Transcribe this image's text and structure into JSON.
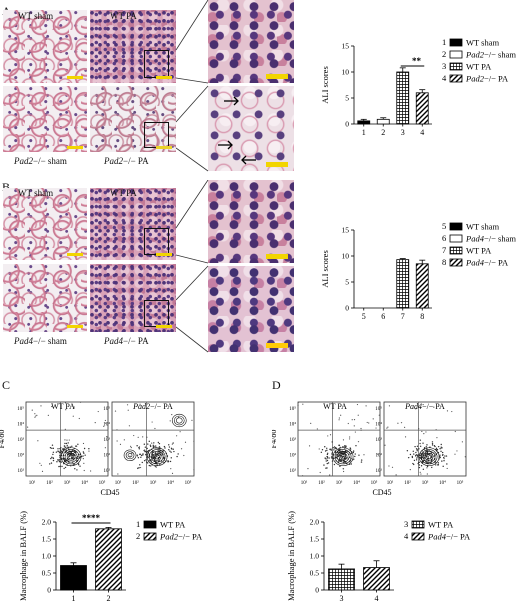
{
  "panels": {
    "A": {
      "letter": "A",
      "labels": {
        "wt_sham": "WT sham",
        "wt_pa": "WT PA",
        "ko_sham_gene": "Pad2",
        "ko_sham_rest": "−/− sham",
        "ko_pa_gene": "Pad2",
        "ko_pa_rest": "−/− PA"
      },
      "chart_data": {
        "type": "bar",
        "ylabel": "ALI scores",
        "categories": [
          "1",
          "2",
          "3",
          "4"
        ],
        "values": [
          0.6,
          0.9,
          10.0,
          6.0
        ],
        "errors": [
          0.3,
          0.3,
          0.8,
          0.6
        ],
        "ylim": [
          0,
          15
        ],
        "yticks": [
          "0",
          "5",
          "10",
          "15"
        ],
        "significance": {
          "between": [
            "3",
            "4"
          ],
          "label": "**"
        },
        "legend": [
          {
            "num": "1",
            "name": "WT sham",
            "pattern": "solid-black"
          },
          {
            "num": "2",
            "gene": "Pad2",
            "rest": "−/− sham",
            "pattern": "white"
          },
          {
            "num": "3",
            "name": "WT PA",
            "pattern": "grid"
          },
          {
            "num": "4",
            "gene": "Pad2",
            "rest": "−/− PA",
            "pattern": "hatch"
          }
        ]
      }
    },
    "B": {
      "letter": "B",
      "labels": {
        "wt_sham": "WT sham",
        "wt_pa": "WT PA",
        "ko_sham_gene": "Pad4",
        "ko_sham_rest": "−/− sham",
        "ko_pa_gene": "Pad4",
        "ko_pa_rest": "−/− PA"
      },
      "chart_data": {
        "type": "bar",
        "ylabel": "ALI scores",
        "categories": [
          "5",
          "6",
          "7",
          "8"
        ],
        "values": [
          0,
          0,
          9.3,
          8.5
        ],
        "errors": [
          0,
          0,
          0.2,
          0.7
        ],
        "ylim": [
          0,
          15
        ],
        "yticks": [
          "0",
          "5",
          "10",
          "15"
        ],
        "legend": [
          {
            "num": "5",
            "name": "WT sham",
            "pattern": "solid-black"
          },
          {
            "num": "6",
            "gene": "Pad4",
            "rest": "−/− sham",
            "pattern": "white"
          },
          {
            "num": "7",
            "name": "WT PA",
            "pattern": "grid"
          },
          {
            "num": "8",
            "gene": "Pad4",
            "rest": "−/− PA",
            "pattern": "hatch"
          }
        ]
      }
    },
    "C": {
      "letter": "C",
      "flow": {
        "left_title": "WT PA",
        "right_gene": "Pad2",
        "right_rest": "−/− PA",
        "ylabel": "F4/80",
        "xlabel": "CD45",
        "ticks": [
          "10¹",
          "10²",
          "10³",
          "10⁴",
          "10⁵"
        ],
        "ytick_labels": [
          "10⁵",
          "10⁴",
          "10³",
          "10²",
          "10¹"
        ]
      },
      "chart_data": {
        "type": "bar",
        "ylabel": "Macrophage in BALF (%)",
        "categories": [
          "1",
          "2"
        ],
        "values": [
          0.72,
          1.8
        ],
        "errors": [
          0.08,
          0.04
        ],
        "ylim": [
          0,
          2.0
        ],
        "yticks": [
          "0",
          "0.5",
          "1.0",
          "1.5",
          "2.0"
        ],
        "significance": {
          "between": [
            "1",
            "2"
          ],
          "label": "****"
        },
        "legend": [
          {
            "num": "1",
            "name": "WT PA",
            "pattern": "solid-black"
          },
          {
            "num": "2",
            "gene": "Pad2",
            "rest": "−/− PA",
            "pattern": "hatch"
          }
        ]
      }
    },
    "D": {
      "letter": "D",
      "flow": {
        "left_title": "WT PA",
        "right_gene": "Pad4",
        "right_rest": "−/− PA",
        "ylabel": "F4/80",
        "xlabel": "CD45",
        "ticks": [
          "10¹",
          "10²",
          "10³",
          "10⁴",
          "10⁵"
        ],
        "ytick_labels": [
          "10⁵",
          "10⁴",
          "10³",
          "10²",
          "10¹"
        ]
      },
      "chart_data": {
        "type": "bar",
        "ylabel": "Macrophage in BALF (%)",
        "categories": [
          "3",
          "4"
        ],
        "values": [
          0.62,
          0.66
        ],
        "errors": [
          0.14,
          0.2
        ],
        "ylim": [
          0,
          2.0
        ],
        "yticks": [
          "0",
          "0.5",
          "1.0",
          "1.5",
          "2.0"
        ],
        "legend": [
          {
            "num": "3",
            "name": "WT PA",
            "pattern": "grid"
          },
          {
            "num": "4",
            "gene": "Pad4",
            "rest": "−/− PA",
            "pattern": "hatch"
          }
        ]
      }
    }
  }
}
